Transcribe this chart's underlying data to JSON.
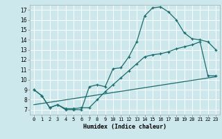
{
  "title": "",
  "xlabel": "Humidex (Indice chaleur)",
  "bg_color": "#cce8ec",
  "grid_color": "#ffffff",
  "line_color": "#1a6b6b",
  "xlim": [
    -0.5,
    23.5
  ],
  "ylim": [
    6.5,
    17.5
  ],
  "xticks": [
    0,
    1,
    2,
    3,
    4,
    5,
    6,
    7,
    8,
    9,
    10,
    11,
    12,
    13,
    14,
    15,
    16,
    17,
    18,
    19,
    20,
    21,
    22,
    23
  ],
  "yticks": [
    7,
    8,
    9,
    10,
    11,
    12,
    13,
    14,
    15,
    16,
    17
  ],
  "curve1_x": [
    0,
    1,
    2,
    3,
    4,
    5,
    6,
    7,
    8,
    9,
    10,
    11,
    12,
    13,
    14,
    15,
    16,
    17,
    18,
    19,
    20,
    21,
    22,
    23
  ],
  "curve1_y": [
    9.0,
    8.4,
    7.2,
    7.5,
    7.0,
    7.0,
    7.0,
    9.3,
    9.5,
    9.3,
    11.1,
    11.2,
    12.3,
    13.8,
    16.4,
    17.2,
    17.3,
    16.8,
    16.0,
    14.7,
    14.1,
    14.0,
    13.8,
    13.0
  ],
  "curve2_x": [
    0,
    1,
    2,
    3,
    4,
    5,
    6,
    7,
    8,
    9,
    10,
    11,
    12,
    13,
    14,
    15,
    16,
    17,
    18,
    19,
    20,
    21,
    22,
    23
  ],
  "curve2_y": [
    9.0,
    8.4,
    7.2,
    7.5,
    7.1,
    7.1,
    7.2,
    7.2,
    8.0,
    8.8,
    9.5,
    10.2,
    10.9,
    11.6,
    12.3,
    12.5,
    12.6,
    12.8,
    13.1,
    13.3,
    13.5,
    13.8,
    10.4,
    10.4
  ],
  "curve3_x": [
    0,
    23
  ],
  "curve3_y": [
    7.5,
    10.3
  ]
}
